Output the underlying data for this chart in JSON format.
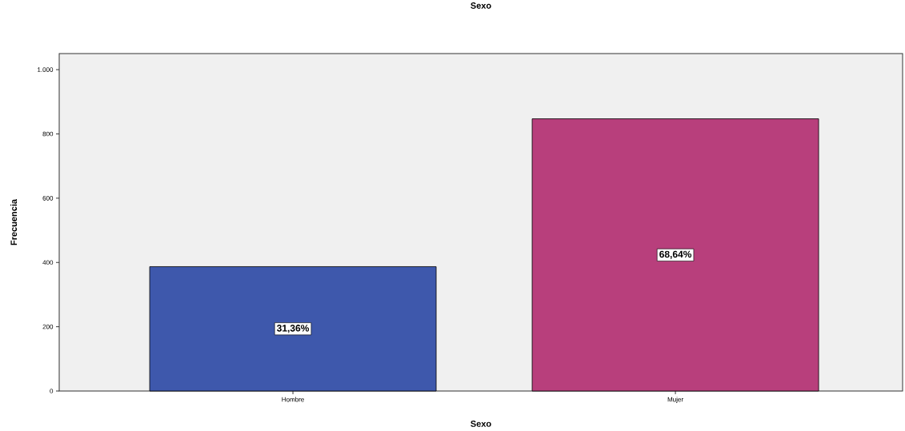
{
  "chart_data": {
    "type": "bar",
    "title": "Sexo",
    "xlabel": "Sexo",
    "ylabel": "Frecuencia",
    "categories": [
      "Hombre",
      "Mujer"
    ],
    "values": [
      387,
      847
    ],
    "colors": [
      "#3e58ac",
      "#b83f7c"
    ],
    "annotations": [
      "31,36%",
      "68,64%"
    ],
    "ylim": [
      0,
      1050
    ],
    "yticks": [
      0,
      200,
      400,
      600,
      800,
      {
        "value": 1000,
        "label": "1.000"
      }
    ],
    "grid": false
  }
}
